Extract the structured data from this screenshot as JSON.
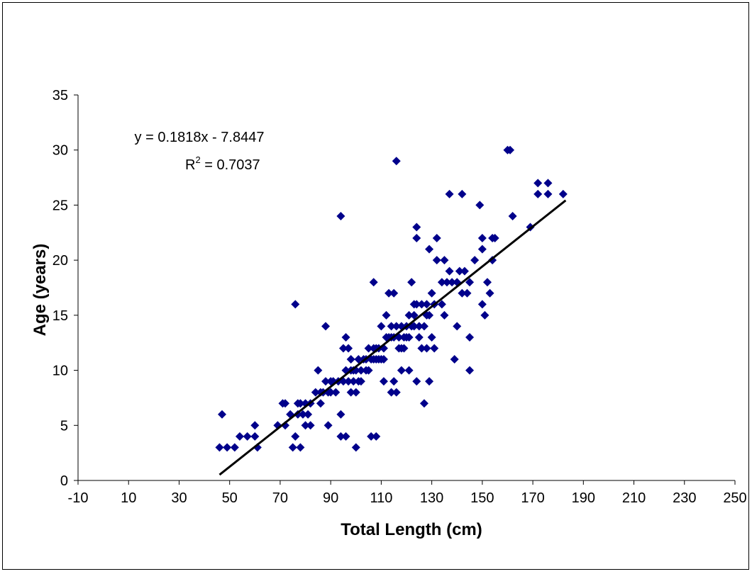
{
  "chart_data": {
    "type": "scatter",
    "title": "",
    "xlabel": "Total Length (cm)",
    "ylabel": "Age (years)",
    "xlim": [
      -10,
      250
    ],
    "ylim": [
      0,
      35
    ],
    "xticks": [
      -10,
      10,
      30,
      50,
      70,
      90,
      110,
      130,
      150,
      170,
      190,
      210,
      230,
      250
    ],
    "yticks": [
      0,
      5,
      10,
      15,
      20,
      25,
      30,
      35
    ],
    "grid": false,
    "legend": "none",
    "marker_color": "#00008B",
    "trendline": {
      "type": "linear",
      "slope": 0.1818,
      "intercept": -7.8447,
      "x_range": [
        46,
        183
      ],
      "color": "#000000",
      "equation_label": "y = 0.1818x - 7.8447",
      "r2_label_prefix": "R",
      "r2_label_sup": "2",
      "r2_label_suffix": " = 0.7037"
    },
    "series": [
      {
        "points": [
          [
            46,
            3
          ],
          [
            47,
            6
          ],
          [
            49,
            3
          ],
          [
            52,
            3
          ],
          [
            54,
            4
          ],
          [
            57,
            4
          ],
          [
            60,
            5
          ],
          [
            60,
            4
          ],
          [
            61,
            3
          ],
          [
            69,
            5
          ],
          [
            71,
            7
          ],
          [
            72,
            7
          ],
          [
            72,
            5
          ],
          [
            74,
            6
          ],
          [
            75,
            3
          ],
          [
            76,
            16
          ],
          [
            76,
            4
          ],
          [
            77,
            6
          ],
          [
            77,
            7
          ],
          [
            78,
            3
          ],
          [
            78,
            7
          ],
          [
            79,
            6
          ],
          [
            80,
            5
          ],
          [
            80,
            7
          ],
          [
            81,
            6
          ],
          [
            82,
            5
          ],
          [
            82,
            7
          ],
          [
            84,
            8
          ],
          [
            85,
            10
          ],
          [
            86,
            7
          ],
          [
            86,
            8
          ],
          [
            87,
            8
          ],
          [
            88,
            9
          ],
          [
            88,
            14
          ],
          [
            89,
            5
          ],
          [
            89,
            8
          ],
          [
            90,
            9
          ],
          [
            90,
            8
          ],
          [
            91,
            9
          ],
          [
            92,
            8
          ],
          [
            93,
            9
          ],
          [
            94,
            4
          ],
          [
            94,
            6
          ],
          [
            94,
            24
          ],
          [
            95,
            9
          ],
          [
            95,
            12
          ],
          [
            96,
            4
          ],
          [
            96,
            10
          ],
          [
            96,
            13
          ],
          [
            97,
            12
          ],
          [
            97,
            9
          ],
          [
            98,
            10
          ],
          [
            98,
            8
          ],
          [
            98,
            11
          ],
          [
            99,
            9
          ],
          [
            99,
            10
          ],
          [
            100,
            3
          ],
          [
            100,
            8
          ],
          [
            100,
            10
          ],
          [
            101,
            9
          ],
          [
            101,
            11
          ],
          [
            102,
            10
          ],
          [
            102,
            9
          ],
          [
            103,
            11
          ],
          [
            104,
            10
          ],
          [
            104,
            11
          ],
          [
            105,
            10
          ],
          [
            105,
            12
          ],
          [
            106,
            11
          ],
          [
            106,
            4
          ],
          [
            107,
            12
          ],
          [
            107,
            11
          ],
          [
            107,
            18
          ],
          [
            108,
            4
          ],
          [
            108,
            12
          ],
          [
            108,
            11
          ],
          [
            109,
            12
          ],
          [
            109,
            11
          ],
          [
            110,
            14
          ],
          [
            110,
            11
          ],
          [
            111,
            9
          ],
          [
            111,
            12
          ],
          [
            111,
            11
          ],
          [
            112,
            13
          ],
          [
            112,
            15
          ],
          [
            113,
            13
          ],
          [
            113,
            17
          ],
          [
            114,
            14
          ],
          [
            114,
            8
          ],
          [
            114,
            13
          ],
          [
            115,
            17
          ],
          [
            115,
            9
          ],
          [
            115,
            13
          ],
          [
            116,
            8
          ],
          [
            116,
            29
          ],
          [
            116,
            14
          ],
          [
            117,
            12
          ],
          [
            117,
            13
          ],
          [
            118,
            14
          ],
          [
            118,
            10
          ],
          [
            118,
            12
          ],
          [
            119,
            13
          ],
          [
            119,
            12
          ],
          [
            120,
            14
          ],
          [
            120,
            13
          ],
          [
            121,
            10
          ],
          [
            121,
            15
          ],
          [
            121,
            13
          ],
          [
            122,
            14
          ],
          [
            122,
            18
          ],
          [
            123,
            16
          ],
          [
            123,
            14
          ],
          [
            123,
            15
          ],
          [
            124,
            22
          ],
          [
            124,
            23
          ],
          [
            124,
            9
          ],
          [
            124,
            16
          ],
          [
            125,
            14
          ],
          [
            125,
            13
          ],
          [
            126,
            16
          ],
          [
            126,
            12
          ],
          [
            127,
            14
          ],
          [
            127,
            7
          ],
          [
            128,
            16
          ],
          [
            128,
            15
          ],
          [
            128,
            12
          ],
          [
            129,
            9
          ],
          [
            129,
            15
          ],
          [
            129,
            21
          ],
          [
            130,
            13
          ],
          [
            130,
            17
          ],
          [
            131,
            12
          ],
          [
            131,
            16
          ],
          [
            132,
            22
          ],
          [
            132,
            20
          ],
          [
            134,
            16
          ],
          [
            134,
            18
          ],
          [
            135,
            15
          ],
          [
            135,
            20
          ],
          [
            136,
            18
          ],
          [
            137,
            26
          ],
          [
            137,
            19
          ],
          [
            138,
            18
          ],
          [
            139,
            11
          ],
          [
            140,
            14
          ],
          [
            140,
            18
          ],
          [
            141,
            19
          ],
          [
            142,
            26
          ],
          [
            142,
            17
          ],
          [
            143,
            19
          ],
          [
            144,
            17
          ],
          [
            145,
            13
          ],
          [
            145,
            18
          ],
          [
            145,
            10
          ],
          [
            147,
            20
          ],
          [
            149,
            25
          ],
          [
            150,
            16
          ],
          [
            150,
            21
          ],
          [
            150,
            22
          ],
          [
            151,
            15
          ],
          [
            152,
            18
          ],
          [
            153,
            17
          ],
          [
            154,
            20
          ],
          [
            154,
            22
          ],
          [
            155,
            22
          ],
          [
            160,
            30
          ],
          [
            161,
            30
          ],
          [
            162,
            24
          ],
          [
            169,
            23
          ],
          [
            172,
            26
          ],
          [
            172,
            27
          ],
          [
            176,
            27
          ],
          [
            176,
            26
          ],
          [
            182,
            26
          ]
        ]
      }
    ]
  }
}
